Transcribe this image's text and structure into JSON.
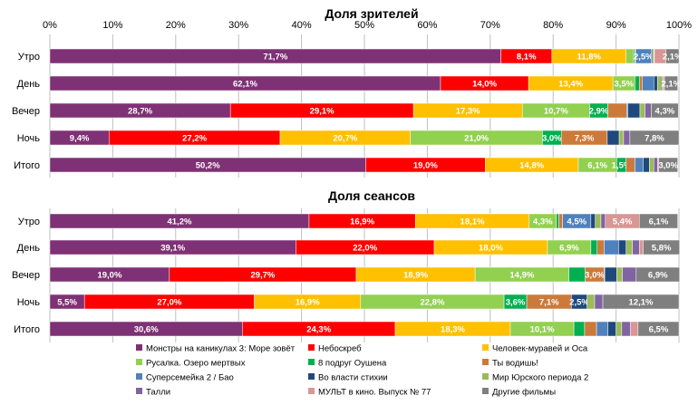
{
  "chart_data": [
    {
      "type": "bar",
      "orientation": "horizontal",
      "stacked": true,
      "title": "Доля зрителей",
      "xlim": [
        0,
        100
      ],
      "xticks": [
        "0%",
        "10%",
        "20%",
        "30%",
        "40%",
        "50%",
        "60%",
        "70%",
        "80%",
        "90%",
        "100%"
      ],
      "grid": true,
      "categories": [
        "Утро",
        "День",
        "Вечер",
        "Ночь",
        "Итого"
      ],
      "series_values": [
        [
          71.7,
          8.1,
          11.8,
          1.2,
          0.2,
          0.1,
          2.5,
          0.2,
          0.2,
          0.1,
          1.8,
          2.1
        ],
        [
          62.1,
          14.0,
          13.4,
          3.5,
          0.7,
          0.5,
          1.8,
          0.6,
          0.7,
          0.2,
          0.2,
          2.1
        ],
        [
          28.7,
          29.1,
          17.3,
          10.7,
          2.9,
          3.0,
          0.2,
          1.9,
          0.8,
          1.0,
          0,
          4.3
        ],
        [
          9.4,
          27.2,
          20.7,
          21.0,
          3.0,
          7.3,
          0,
          1.9,
          0.7,
          1.0,
          0,
          7.8
        ],
        [
          50.2,
          19.0,
          14.8,
          6.1,
          1.5,
          1.4,
          1.3,
          1.0,
          0.7,
          0.6,
          0.2,
          3.0
        ]
      ],
      "data_labels": [
        [
          "71,7%",
          "8,1%",
          "11,8%",
          "",
          "",
          "",
          "2,5%",
          "",
          "",
          "",
          "",
          "2,1%"
        ],
        [
          "62,1%",
          "14,0%",
          "13,4%",
          "3,5%",
          "",
          "",
          "",
          "",
          "",
          "",
          "",
          "2,1%"
        ],
        [
          "28,7%",
          "29,1%",
          "17,3%",
          "10,7%",
          "2,9%",
          "",
          "",
          "",
          "",
          "",
          "",
          "4,3%"
        ],
        [
          "9,4%",
          "27,2%",
          "20,7%",
          "21,0%",
          "3,0%",
          "7,3%",
          "",
          "",
          "",
          "",
          "",
          "7,8%"
        ],
        [
          "50,2%",
          "19,0%",
          "14,8%",
          "6,1%",
          "1,5%",
          "",
          "",
          "",
          "",
          "",
          "",
          "3,0%"
        ]
      ]
    },
    {
      "type": "bar",
      "orientation": "horizontal",
      "stacked": true,
      "title": "Доля сеансов",
      "xlim": [
        0,
        100
      ],
      "grid": true,
      "categories": [
        "Утро",
        "День",
        "Вечер",
        "Ночь",
        "Итого"
      ],
      "series_values": [
        [
          41.2,
          16.9,
          18.1,
          4.3,
          0.4,
          0.6,
          4.5,
          0.7,
          0.9,
          0.7,
          5.4,
          6.1
        ],
        [
          39.1,
          22.0,
          18.0,
          6.9,
          1.0,
          1.1,
          2.3,
          1.2,
          1.0,
          1.1,
          0.6,
          5.8
        ],
        [
          19.0,
          29.7,
          18.9,
          14.9,
          2.6,
          3.0,
          0.1,
          1.9,
          0.9,
          2.2,
          0,
          6.9
        ],
        [
          5.5,
          27.0,
          16.9,
          22.8,
          3.6,
          7.1,
          0,
          2.5,
          1.2,
          1.3,
          0,
          12.1
        ],
        [
          30.6,
          24.3,
          18.3,
          10.1,
          1.7,
          1.9,
          1.8,
          1.3,
          0.9,
          1.4,
          1.2,
          6.5
        ]
      ],
      "data_labels": [
        [
          "41,2%",
          "16,9%",
          "18,1%",
          "4,3%",
          "",
          "",
          "4,5%",
          "",
          "",
          "",
          "5,4%",
          "6,1%"
        ],
        [
          "39,1%",
          "22,0%",
          "18,0%",
          "6,9%",
          "",
          "",
          "",
          "",
          "",
          "",
          "",
          "5,8%"
        ],
        [
          "19,0%",
          "29,7%",
          "18,9%",
          "14,9%",
          "",
          "3,0%",
          "",
          "",
          "",
          "",
          "",
          "6,9%"
        ],
        [
          "5,5%",
          "27,0%",
          "16,9%",
          "22,8%",
          "3,6%",
          "7,1%",
          "",
          "2,5%",
          "",
          "",
          "",
          "12,1%"
        ],
        [
          "30,6%",
          "24,3%",
          "18,3%",
          "10,1%",
          "",
          "",
          "",
          "",
          "",
          "",
          "",
          "6,5%"
        ]
      ]
    }
  ],
  "legend": {
    "placement": "bottom",
    "items": [
      {
        "name": "Монстры на каникулах 3: Море зовёт",
        "color": "#7f3175"
      },
      {
        "name": "Небоскреб",
        "color": "#ff0000"
      },
      {
        "name": "Человек-муравей и Оса",
        "color": "#ffc000"
      },
      {
        "name": "Русалка. Озеро мертвых",
        "color": "#92d050"
      },
      {
        "name": "8 подруг Оушена",
        "color": "#00b050"
      },
      {
        "name": "Ты водишь!",
        "color": "#cc7a3a"
      },
      {
        "name": "Суперсемейка 2 / Бао",
        "color": "#4f81bd"
      },
      {
        "name": "Во власти стихии",
        "color": "#1f497d"
      },
      {
        "name": "Мир Юрского периода 2",
        "color": "#9bbb59"
      },
      {
        "name": "Талли",
        "color": "#8064a2"
      },
      {
        "name": "МУЛЬТ в кино. Выпуск № 77",
        "color": "#d99694"
      },
      {
        "name": "Другие фильмы",
        "color": "#7f7f7f"
      }
    ]
  }
}
